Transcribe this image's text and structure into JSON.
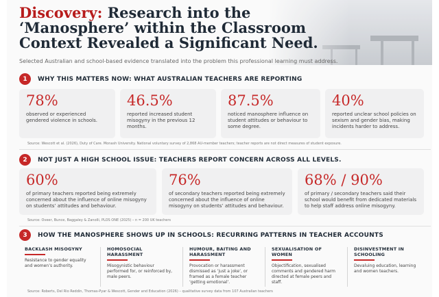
{
  "header": {
    "title_accent": "Discovery:",
    "title_rest": " Research into the ‘Manosphere’ within the Classroom Context Revealed a Significant Need.",
    "subtitle": "Selected Australian and school-based evidence translated into the problem this professional learning must address."
  },
  "sections": [
    {
      "number": "1",
      "title": "WHY THIS MATTERS NOW: WHAT AUSTRALIAN TEACHERS ARE REPORTING",
      "stats": [
        {
          "value": "78%",
          "desc": "observed or experienced gendered violence in schools."
        },
        {
          "value": "46.5%",
          "desc": "reported increased student misogyny in the previous 12 months."
        },
        {
          "value": "87.5%",
          "desc": "noticed manosphere influence on student attitudes or behaviour to some degree."
        },
        {
          "value": "40%",
          "desc": "reported unclear school policies on sexism and gender bias, making incidents harder to address."
        }
      ],
      "source": "Source: Wescott et al. (2026), Duty of Care. Monash University. National voluntary survey of 2,868 AU-member teachers; teacher reports are not direct measures of student exposure."
    },
    {
      "number": "2",
      "title": "NOT JUST A HIGH SCHOOL ISSUE: TEACHERS REPORT CONCERN ACROSS ALL LEVELS.",
      "stats": [
        {
          "value": "60%",
          "desc": "of primary teachers reported being extremely concerned about the influence of online misogyny on students’ attitudes and behaviour."
        },
        {
          "value": "76%",
          "desc": "of secondary teachers reported being extremely concerned about the influence of online misogyny on students’ attitudes and behaviour."
        },
        {
          "value": "68% / 90%",
          "desc": "of primary / secondary teachers said their school would benefit from dedicated materials to help staff address online misogyny."
        }
      ],
      "source": "Source: Oveer, Bunce, Baggaley & Zanolli, PLOS ONE (2025) – n = 200 UK teachers"
    },
    {
      "number": "3",
      "title": "HOW THE MANOSPHERE SHOWS UP IN SCHOOLS: RECURRING PATTERNS IN TEACHER ACCOUNTS",
      "patterns": [
        {
          "heading": "BACKLASH MISOGYNY",
          "desc": "Resistance to gender equality and women’s authority."
        },
        {
          "heading": "HOMOSOCIAL HARASSMENT",
          "desc": "Misogynistic behaviour performed for, or reinforced by, male peers."
        },
        {
          "heading": "HUMOUR, BAITING AND HARASSMENT",
          "desc": "Provocation or harassment dismissed as ‘just a joke’, or framed as a female teacher ‘getting emotional’."
        },
        {
          "heading": "SEXUALISATION OF WOMEN",
          "desc": "Objectification, sexualised comments and gendered harm directed at female peers and staff."
        },
        {
          "heading": "DISINVESTMENT IN SCHOOLING",
          "desc": "Devaluing education, learning and women teachers."
        }
      ],
      "source": "Source: Roberts, Del Rio Reddin, Thomas-Pyar & Wescott, Gender and Education (2026) – qualitative survey data from 107 Australian teachers"
    }
  ],
  "colors": {
    "accent": "#c62828",
    "heading": "#1f2a36",
    "card": "#f0f0f1"
  }
}
